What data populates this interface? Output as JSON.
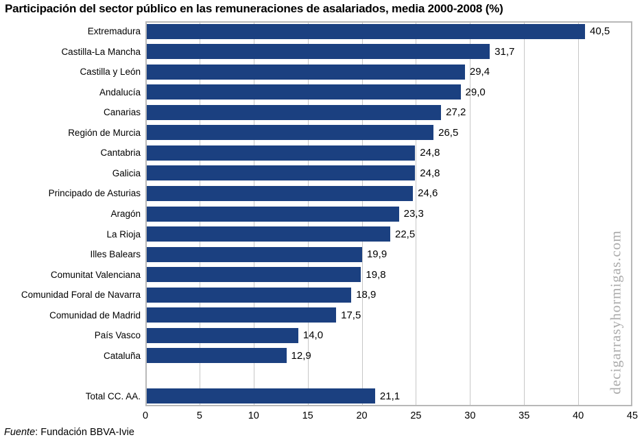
{
  "title": "Participación del sector público en las remuneraciones de asalariados, media 2000-2008 (%)",
  "source": {
    "prefix": "Fuente",
    "rest": ": Fundación BBVA-Ivie"
  },
  "watermark": "decigarrasyhormigas.com",
  "colors": {
    "bar": "#1b4080",
    "grid": "#c6c6c6",
    "plot_border": "#b8b8b8",
    "watermark": "#aaaaaa"
  },
  "chart_data": {
    "type": "bar",
    "orientation": "horizontal",
    "title": "Participación del sector público en las remuneraciones de asalariados, media 2000-2008 (%)",
    "xlabel": "",
    "ylabel": "",
    "xlim": [
      0,
      45
    ],
    "xticks": [
      0,
      5,
      10,
      15,
      20,
      25,
      30,
      35,
      40,
      45
    ],
    "grid": true,
    "bars": [
      {
        "label": "Extremadura",
        "value": 40.5,
        "display": "40,5"
      },
      {
        "label": "Castilla-La Mancha",
        "value": 31.7,
        "display": "31,7"
      },
      {
        "label": "Castilla y León",
        "value": 29.4,
        "display": "29,4"
      },
      {
        "label": "Andalucía",
        "value": 29.0,
        "display": "29,0"
      },
      {
        "label": "Canarias",
        "value": 27.2,
        "display": "27,2"
      },
      {
        "label": "Región de Murcia",
        "value": 26.5,
        "display": "26,5"
      },
      {
        "label": "Cantabria",
        "value": 24.8,
        "display": "24,8"
      },
      {
        "label": "Galicia",
        "value": 24.8,
        "display": "24,8"
      },
      {
        "label": "Principado de Asturias",
        "value": 24.6,
        "display": "24,6"
      },
      {
        "label": "Aragón",
        "value": 23.3,
        "display": "23,3"
      },
      {
        "label": "La Rioja",
        "value": 22.5,
        "display": "22,5"
      },
      {
        "label": "Illes Balears",
        "value": 19.9,
        "display": "19,9"
      },
      {
        "label": "Comunitat Valenciana",
        "value": 19.8,
        "display": "19,8"
      },
      {
        "label": "Comunidad Foral de Navarra",
        "value": 18.9,
        "display": "18,9"
      },
      {
        "label": "Comunidad de Madrid",
        "value": 17.5,
        "display": "17,5"
      },
      {
        "label": "País Vasco",
        "value": 14.0,
        "display": "14,0"
      },
      {
        "label": "Cataluña",
        "value": 12.9,
        "display": "12,9"
      }
    ],
    "total": {
      "label": "Total CC. AA.",
      "value": 21.1,
      "display": "21,1"
    }
  }
}
